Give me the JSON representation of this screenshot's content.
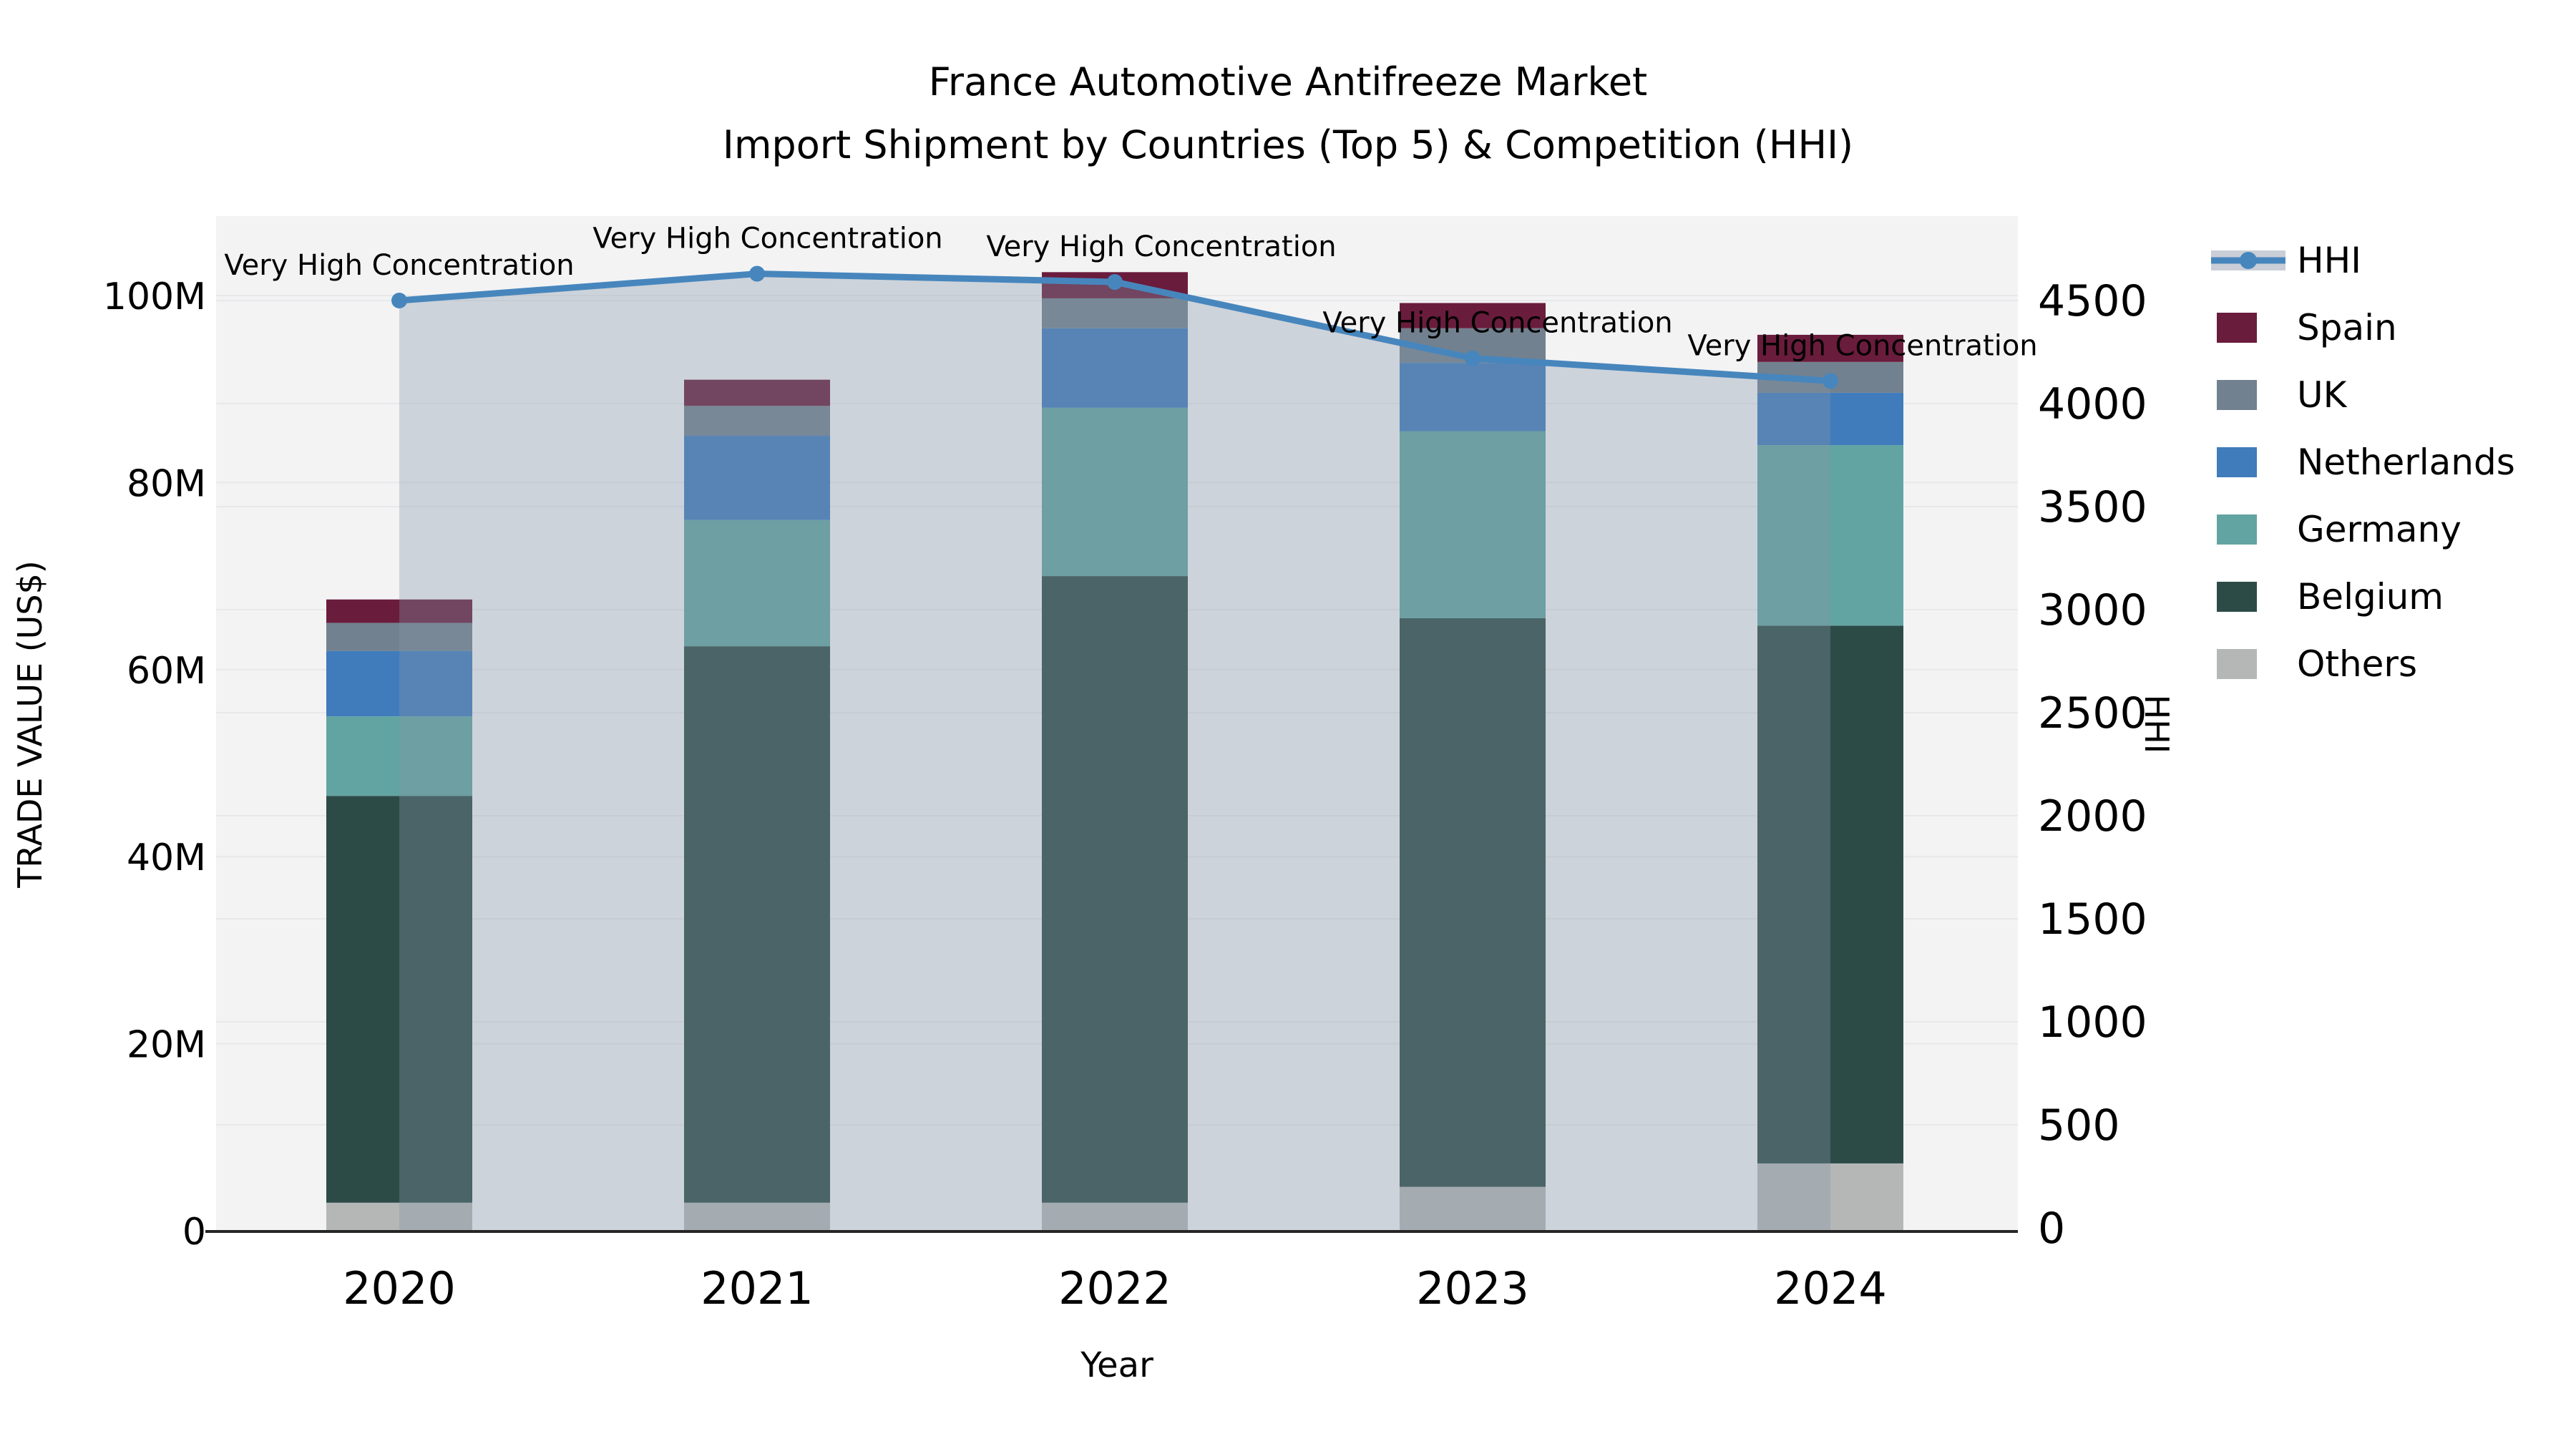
{
  "title": {
    "line1": "France Automotive Antifreeze Market",
    "line2": "Import Shipment by Countries (Top 5) & Competition (HHI)"
  },
  "axes": {
    "left": {
      "title": "TRADE VALUE (US$)",
      "tick_values": [
        0,
        20,
        40,
        60,
        80,
        100
      ],
      "tick_labels": [
        "0",
        "20M",
        "40M",
        "60M",
        "80M",
        "100M"
      ]
    },
    "right": {
      "title": "HHI",
      "tick_values": [
        0,
        500,
        1000,
        1500,
        2000,
        2500,
        3000,
        3500,
        4000,
        4500
      ],
      "tick_labels": [
        "0",
        "500",
        "1000",
        "1500",
        "2000",
        "2500",
        "3000",
        "3500",
        "4000",
        "4500"
      ]
    },
    "x": {
      "title": "Year",
      "tick_labels": [
        "2020",
        "2021",
        "2022",
        "2023",
        "2024"
      ]
    }
  },
  "legend": {
    "items": [
      {
        "label": "HHI",
        "type": "line",
        "color": "#4786BD",
        "swatch": "#C9CED7"
      },
      {
        "label": "Spain",
        "type": "patch",
        "color": "#6A1C3C"
      },
      {
        "label": "UK",
        "type": "patch",
        "color": "#72818F"
      },
      {
        "label": "Netherlands",
        "type": "patch",
        "color": "#407CBC"
      },
      {
        "label": "Germany",
        "type": "patch",
        "color": "#62A4A2"
      },
      {
        "label": "Belgium",
        "type": "patch",
        "color": "#2C4B47"
      },
      {
        "label": "Others",
        "type": "patch",
        "color": "#B5B7B7"
      }
    ]
  },
  "chart_data": {
    "type": "composed_stacked_bar_plus_line",
    "title": "France Automotive Antifreeze Market — Import Shipment by Countries (Top 5) & Competition (HHI)",
    "categories": [
      "2020",
      "2021",
      "2022",
      "2023",
      "2024"
    ],
    "value_unit": "US$ millions",
    "series": [
      {
        "name": "Others",
        "color": "#B5B7B7",
        "values": [
          3.0,
          3.0,
          3.0,
          4.7,
          7.2
        ]
      },
      {
        "name": "Belgium",
        "color": "#2C4B47",
        "values": [
          43.5,
          59.5,
          67.0,
          60.8,
          57.5
        ]
      },
      {
        "name": "Germany",
        "color": "#62A4A2",
        "values": [
          8.5,
          13.5,
          18.0,
          20.0,
          19.3
        ]
      },
      {
        "name": "Netherlands",
        "color": "#407CBC",
        "values": [
          7.0,
          9.0,
          8.5,
          7.3,
          5.6
        ]
      },
      {
        "name": "UK",
        "color": "#72818F",
        "values": [
          3.0,
          3.2,
          3.2,
          3.7,
          3.3
        ]
      },
      {
        "name": "Spain",
        "color": "#6A1C3C",
        "values": [
          2.5,
          2.8,
          2.8,
          2.7,
          2.9
        ]
      }
    ],
    "bar_totals": [
      67.5,
      91.0,
      102.5,
      99.2,
      95.8
    ],
    "line_series": {
      "name": "HHI",
      "color": "#4786BD",
      "values": [
        4500,
        4630,
        4590,
        4220,
        4110
      ],
      "area_fill": "rgba(133,150,168,0.34)"
    },
    "annotations": [
      "Very High Concentration",
      "Very High Concentration",
      "Very High Concentration",
      "Very High Concentration",
      "Very High Concentration"
    ],
    "xlabel": "Year",
    "ylabel_left": "TRADE VALUE (US$)",
    "ylabel_right": "HHI",
    "ylim_left": [
      0,
      108
    ],
    "ylim_right": [
      0,
      4900
    ],
    "grid": true,
    "legend_position": "upper-right-outside",
    "plot_bg": "#F3F3F4",
    "grid_color": "#E8E8EA",
    "axis_line_color": "#262626"
  }
}
